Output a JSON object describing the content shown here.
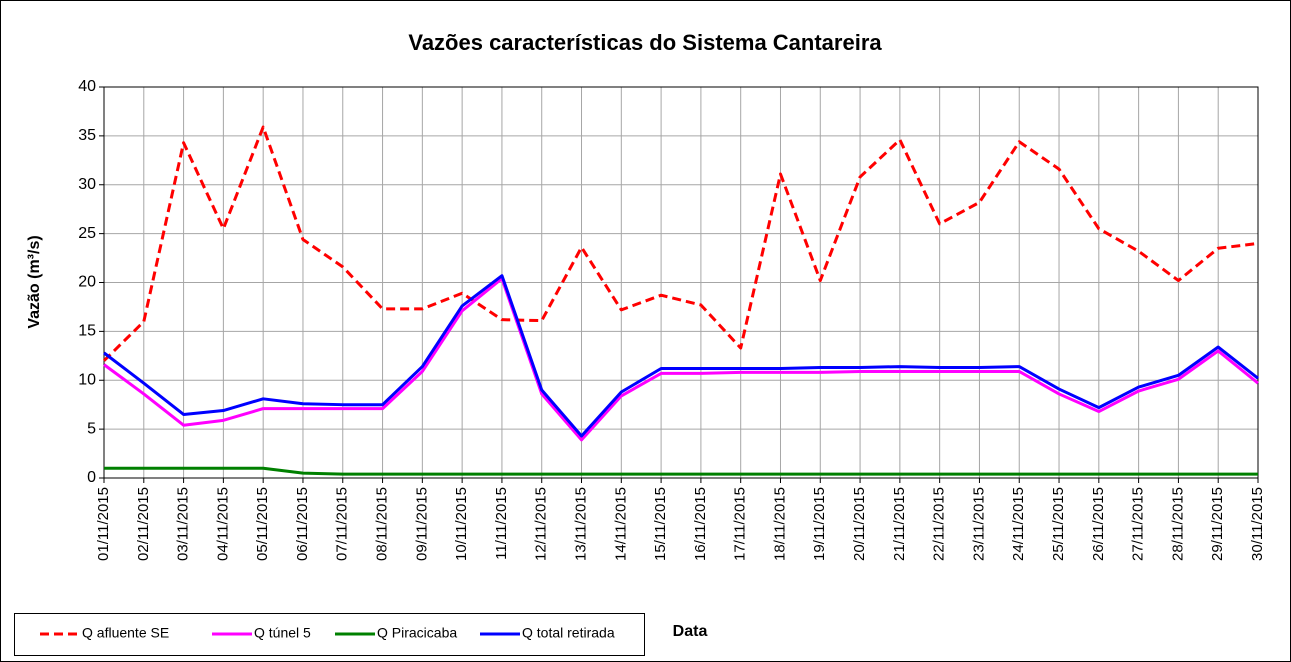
{
  "chart_data": {
    "type": "line",
    "title": "Vazões características do Sistema Cantareira",
    "x_label": "Data",
    "y_label": "Vazão (m³/s)",
    "categories": [
      "01/11/2015",
      "02/11/2015",
      "03/11/2015",
      "04/11/2015",
      "05/11/2015",
      "06/11/2015",
      "07/11/2015",
      "08/11/2015",
      "09/11/2015",
      "10/11/2015",
      "11/11/2015",
      "12/11/2015",
      "13/11/2015",
      "14/11/2015",
      "15/11/2015",
      "16/11/2015",
      "17/11/2015",
      "18/11/2015",
      "19/11/2015",
      "20/11/2015",
      "21/11/2015",
      "22/11/2015",
      "23/11/2015",
      "24/11/2015",
      "25/11/2015",
      "26/11/2015",
      "27/11/2015",
      "28/11/2015",
      "29/11/2015",
      "30/11/2015"
    ],
    "series": [
      {
        "name": "Q afluente SE",
        "color": "#ff0000",
        "dashed": true,
        "values": [
          12,
          16,
          34.3,
          25.5,
          35.9,
          24.4,
          21.6,
          17.3,
          17.3,
          18.9,
          16.2,
          16.1,
          23.6,
          17.2,
          18.7,
          17.7,
          13.3,
          31.1,
          20.2,
          30.8,
          34.6,
          26,
          28.2,
          34.4,
          31.6,
          25.5,
          23.2,
          20.2,
          23.5,
          24
        ]
      },
      {
        "name": "Q túnel 5",
        "color": "#ff00ff",
        "dashed": false,
        "values": [
          11.6,
          8.6,
          5.4,
          5.9,
          7.1,
          7.1,
          7.1,
          7.1,
          10.9,
          17.1,
          20.4,
          8.6,
          3.9,
          8.4,
          10.7,
          10.7,
          10.8,
          10.8,
          10.8,
          10.9,
          10.9,
          10.9,
          10.9,
          10.9,
          8.6,
          6.8,
          8.9,
          10.1,
          13,
          9.7
        ]
      },
      {
        "name": "Q Piracicaba",
        "color": "#008000",
        "dashed": false,
        "values": [
          1,
          1,
          1,
          1,
          1,
          0.5,
          0.4,
          0.4,
          0.4,
          0.4,
          0.4,
          0.4,
          0.4,
          0.4,
          0.4,
          0.4,
          0.4,
          0.4,
          0.4,
          0.4,
          0.4,
          0.4,
          0.4,
          0.4,
          0.4,
          0.4,
          0.4,
          0.4,
          0.4,
          0.4
        ]
      },
      {
        "name": "Q total retirada",
        "color": "#0000ff",
        "dashed": false,
        "values": [
          12.8,
          9.7,
          6.5,
          6.9,
          8.1,
          7.6,
          7.5,
          7.5,
          11.4,
          17.6,
          20.7,
          9,
          4.3,
          8.8,
          11.2,
          11.2,
          11.2,
          11.2,
          11.3,
          11.3,
          11.4,
          11.3,
          11.3,
          11.4,
          9.1,
          7.2,
          9.3,
          10.5,
          13.4,
          10.2
        ]
      }
    ],
    "ylim": [
      0,
      40
    ],
    "yticks": [
      0,
      5,
      10,
      15,
      20,
      25,
      30,
      35,
      40
    ],
    "grid": true
  }
}
